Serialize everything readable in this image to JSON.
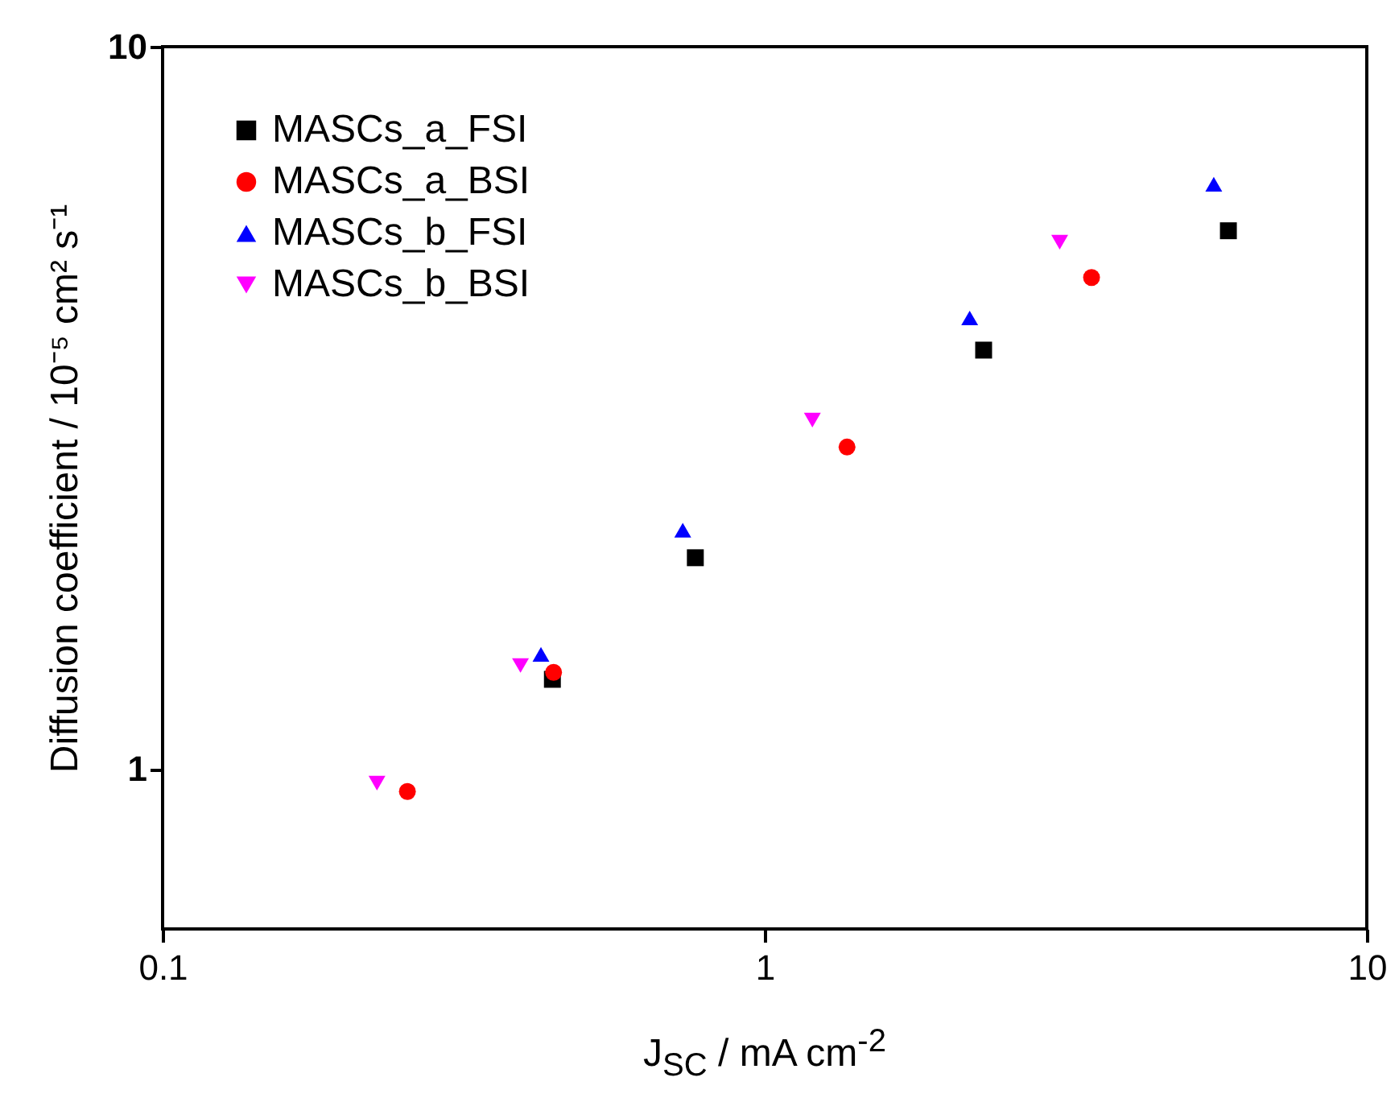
{
  "chart_data": {
    "type": "scatter",
    "xlabel": "J$_{SC}$ / mA cm$^{-2}$",
    "ylabel": "Diffusion coefficient / 10⁻⁵ cm² s⁻¹",
    "log": "xy",
    "xlim": [
      0.1,
      10
    ],
    "xticks": [
      0.1,
      1,
      10
    ],
    "ylim": [
      0.6,
      10
    ],
    "yticks": [
      1,
      10
    ],
    "grid": false,
    "legend": "top left",
    "series": [
      {
        "name": "MASCs_a_FSI",
        "color": "#000000",
        "marker": "square",
        "x": [
          0.444,
          0.767,
          2.31,
          5.89
        ],
        "values": [
          1.33,
          1.96,
          3.8,
          5.56
        ]
      },
      {
        "name": "MASCs_a_BSI",
        "color": "#ff0000",
        "marker": "circle",
        "x": [
          0.255,
          0.446,
          1.37,
          3.49
        ],
        "values": [
          0.93,
          1.36,
          2.79,
          4.79
        ]
      },
      {
        "name": "MASCs_b_FSI",
        "color": "#0000ff",
        "marker": "triangle",
        "x": [
          0.425,
          0.731,
          2.19,
          5.57
        ],
        "values": [
          1.44,
          2.14,
          4.21,
          6.45
        ]
      },
      {
        "name": "MASCs_b_BSI",
        "color": "#ff00ff",
        "marker": "triangle-down",
        "x": [
          0.227,
          0.393,
          1.2,
          3.09
        ],
        "values": [
          0.955,
          1.39,
          3.04,
          5.36
        ]
      }
    ]
  }
}
